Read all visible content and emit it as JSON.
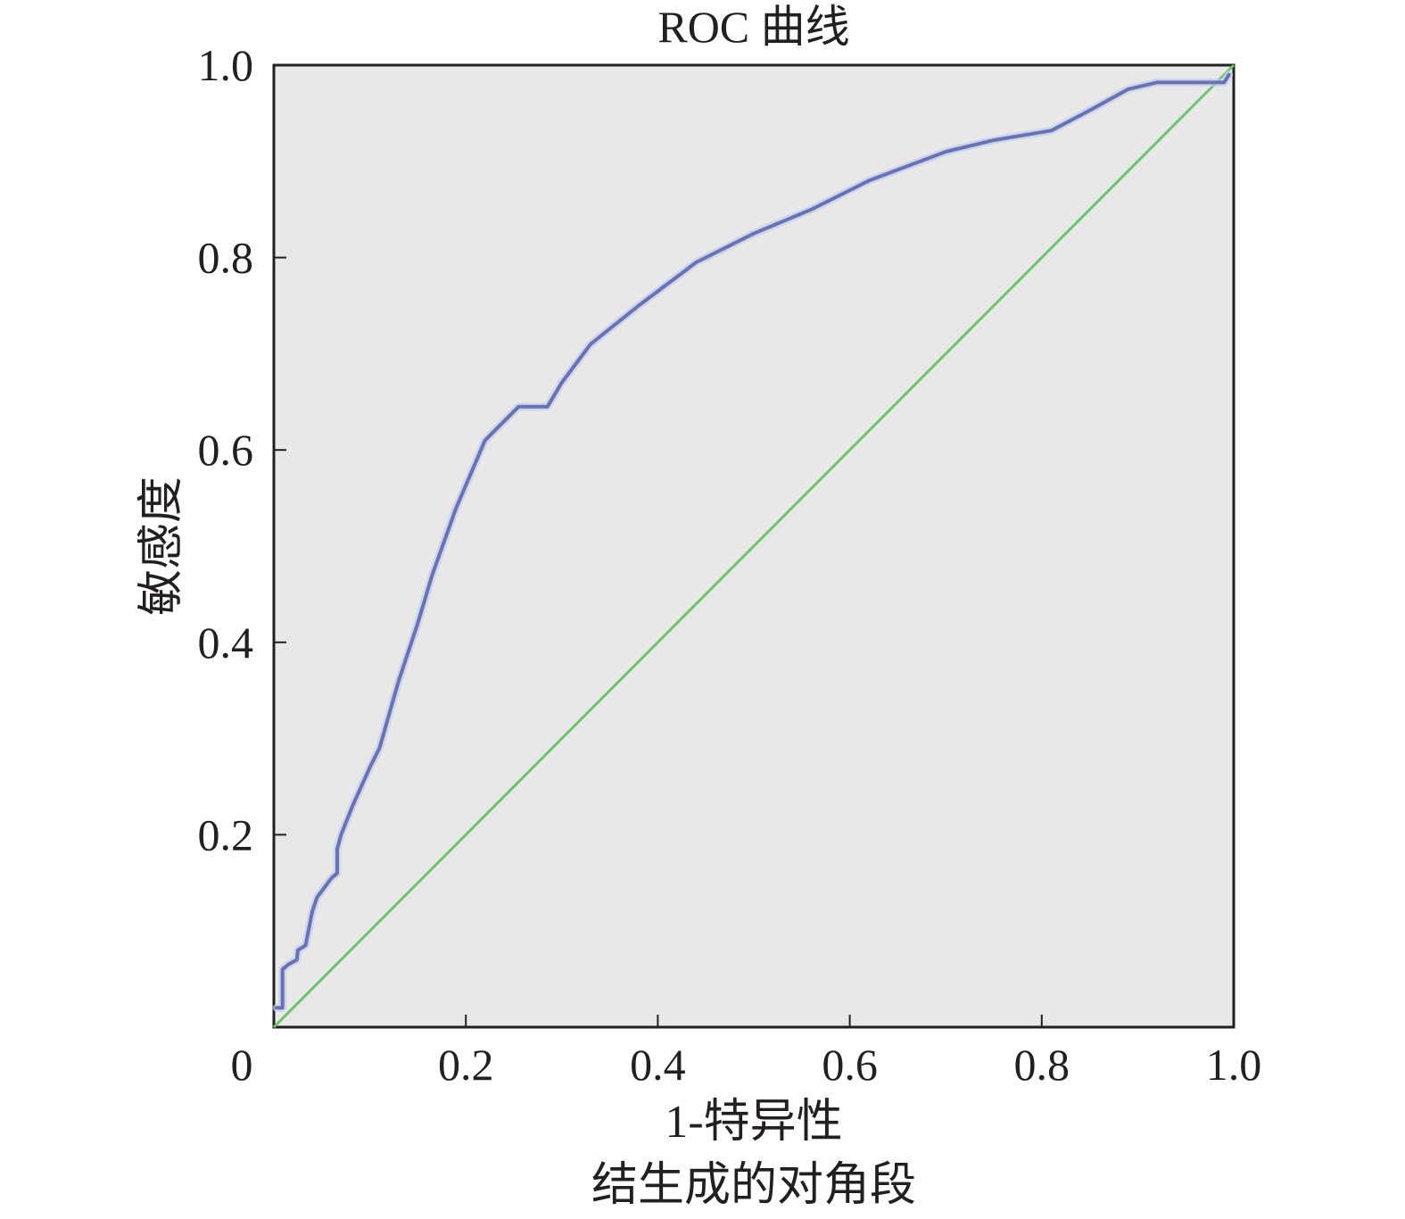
{
  "chart_data": {
    "type": "line",
    "title": "ROC 曲线",
    "xlabel": "1-特异性",
    "ylabel": "敏感度",
    "footnote": "结生成的对角段",
    "xlim": [
      0,
      1.0
    ],
    "ylim": [
      0,
      1.0
    ],
    "grid": false,
    "x_ticks": [
      "0",
      "0.2",
      "0.4",
      "0.6",
      "0.8",
      "1.0"
    ],
    "y_ticks": [
      "0.2",
      "0.4",
      "0.6",
      "0.8",
      "1.0"
    ],
    "background_color": "#e8e8e8",
    "series": [
      {
        "color": "#6673b5",
        "points": [
          [
            0.003,
            0.02
          ],
          [
            0.009,
            0.02
          ],
          [
            0.009,
            0.06
          ],
          [
            0.015,
            0.065
          ],
          [
            0.024,
            0.07
          ],
          [
            0.025,
            0.08
          ],
          [
            0.033,
            0.085
          ],
          [
            0.035,
            0.095
          ],
          [
            0.04,
            0.12
          ],
          [
            0.045,
            0.135
          ],
          [
            0.06,
            0.155
          ],
          [
            0.066,
            0.16
          ],
          [
            0.066,
            0.185
          ],
          [
            0.07,
            0.2
          ],
          [
            0.082,
            0.23
          ],
          [
            0.1,
            0.27
          ],
          [
            0.11,
            0.29
          ],
          [
            0.13,
            0.36
          ],
          [
            0.15,
            0.42
          ],
          [
            0.165,
            0.47
          ],
          [
            0.19,
            0.54
          ],
          [
            0.205,
            0.575
          ],
          [
            0.22,
            0.61
          ],
          [
            0.255,
            0.645
          ],
          [
            0.285,
            0.645
          ],
          [
            0.3,
            0.67
          ],
          [
            0.33,
            0.71
          ],
          [
            0.38,
            0.75
          ],
          [
            0.44,
            0.795
          ],
          [
            0.5,
            0.825
          ],
          [
            0.56,
            0.85
          ],
          [
            0.62,
            0.88
          ],
          [
            0.7,
            0.91
          ],
          [
            0.75,
            0.922
          ],
          [
            0.81,
            0.932
          ],
          [
            0.85,
            0.953
          ],
          [
            0.89,
            0.975
          ],
          [
            0.92,
            0.982
          ],
          [
            0.96,
            0.982
          ],
          [
            0.99,
            0.982
          ],
          [
            0.995,
            0.99
          ]
        ]
      },
      {
        "color": "#6cc46c",
        "points": [
          [
            0,
            0
          ],
          [
            1.0,
            1.0
          ]
        ]
      }
    ]
  }
}
